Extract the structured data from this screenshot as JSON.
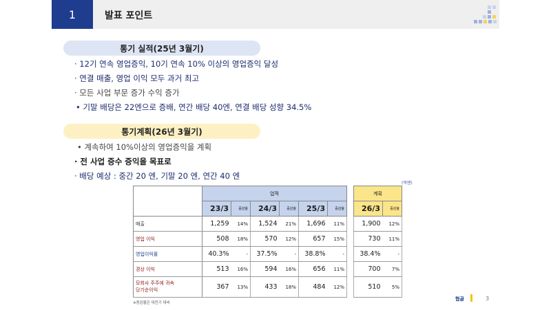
{
  "header": {
    "section_number": "1",
    "title": "발표 포인트"
  },
  "annual_results": {
    "heading": "통기 실적(25년 3월기)",
    "bullets": [
      "· 12기 연속 영업증익, 10기 연속 10% 이상의 영업증익 달성",
      "· 연결 매출, 영업 이익 모두 과거 최고",
      "· 모든 사업 부문 증가 수익 증가",
      "• 기말 배당은 22엔으로 증배, 연간 배당 40엔, 연결 배당 성향 34.5%"
    ]
  },
  "annual_plan": {
    "heading": "통기계획(26년 3월기)",
    "bullets": [
      "• 계속하여 10%이상의 영업증익을 계획",
      "· 전 사업 증수 증익을 목표로",
      "· 배당 예상 : 중간 20 엔, 기말 20 엔, 연간 40 엔"
    ]
  },
  "table": {
    "unit": "(억엔)",
    "group_results": "업적",
    "group_plan": "계획",
    "change_label": "증감율",
    "years": [
      "23/3",
      "24/3",
      "25/3",
      "26/3"
    ],
    "rows": [
      {
        "label": "매출",
        "cells": [
          [
            "1,259",
            "14%"
          ],
          [
            "1,524",
            "21%"
          ],
          [
            "1,696",
            "11%"
          ],
          [
            "1,900",
            "12%"
          ]
        ]
      },
      {
        "label": "영업 이익",
        "cells": [
          [
            "508",
            "18%"
          ],
          [
            "570",
            "12%"
          ],
          [
            "657",
            "15%"
          ],
          [
            "730",
            "11%"
          ]
        ]
      },
      {
        "label": "영업이익률",
        "cells": [
          [
            "40.3%",
            "-"
          ],
          [
            "37.5%",
            "-"
          ],
          [
            "38.8%",
            "-"
          ],
          [
            "38.4%",
            "-"
          ]
        ]
      },
      {
        "label": "경상 이익",
        "cells": [
          [
            "513",
            "16%"
          ],
          [
            "594",
            "16%"
          ],
          [
            "656",
            "11%"
          ],
          [
            "700",
            "7%"
          ]
        ]
      },
      {
        "label": "모회사 주주에 귀속",
        "label2": "당기순이익",
        "cells": [
          [
            "367",
            "13%"
          ],
          [
            "433",
            "18%"
          ],
          [
            "484",
            "12%"
          ],
          [
            "510",
            "5%"
          ]
        ]
      }
    ],
    "footnote": "※증감율은 대전기 대비"
  },
  "footer": {
    "brand": "협골",
    "page": "3"
  },
  "colors": {
    "navy": "#1f3d8f",
    "pill_blue": "#dde4f4",
    "pill_yellow": "#fdf1c4",
    "header_blue": "#c5d3ec",
    "header_yellow": "#fbe58a"
  }
}
